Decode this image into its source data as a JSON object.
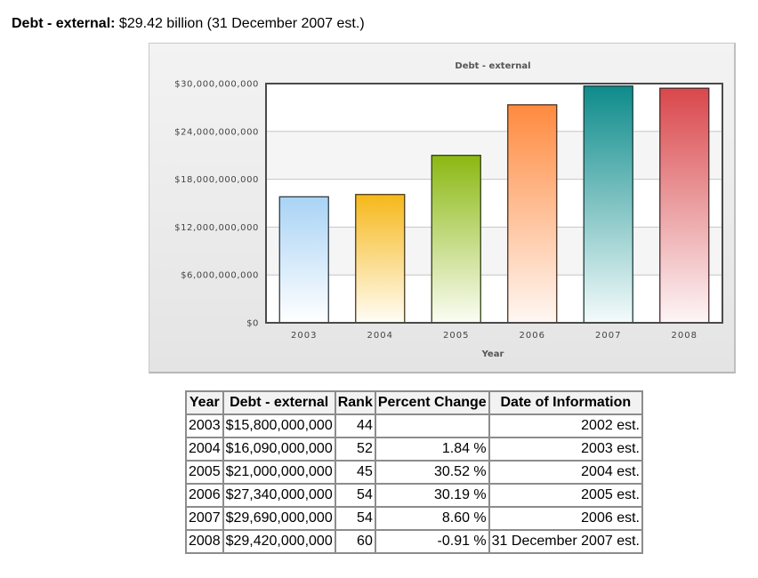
{
  "header": {
    "label": "Debt - external:",
    "value": "$29.42 billion (31 December 2007 est.)"
  },
  "colors": {
    "bar_gradients": [
      [
        "#a9d3f5",
        "#ffffff"
      ],
      [
        "#f6b81a",
        "#fffdf6"
      ],
      [
        "#8bb812",
        "#fbfdf4"
      ],
      [
        "#ff8a3e",
        "#fff8f4"
      ],
      [
        "#0e8b8b",
        "#f4fbfb"
      ],
      [
        "#d9474b",
        "#fdf6f7"
      ]
    ],
    "bar_borders": [
      "#2e3b44",
      "#4a3a1a",
      "#2e4015",
      "#4a3020",
      "#1c3b3b",
      "#4a2a2c"
    ]
  },
  "chart_data": {
    "type": "bar",
    "title": "Debt - external",
    "xlabel": "Year",
    "ylabel": "",
    "categories": [
      "2003",
      "2004",
      "2005",
      "2006",
      "2007",
      "2008"
    ],
    "values": [
      15800000000,
      16090000000,
      21000000000,
      27340000000,
      29690000000,
      29420000000
    ],
    "ylim": [
      0,
      30000000000
    ],
    "yticks": [
      0,
      6000000000,
      12000000000,
      18000000000,
      24000000000,
      30000000000
    ],
    "ytick_labels": [
      "$0",
      "$6,000,000,000",
      "$12,000,000,000",
      "$18,000,000,000",
      "$24,000,000,000",
      "$30,000,000,000"
    ],
    "grid": true,
    "legend": "none"
  },
  "table": {
    "headers": [
      "Year",
      "Debt - external",
      "Rank",
      "Percent Change",
      "Date of Information"
    ],
    "rows": [
      [
        "2003",
        "$15,800,000,000",
        "44",
        "",
        "2002 est."
      ],
      [
        "2004",
        "$16,090,000,000",
        "52",
        "1.84 %",
        "2003 est."
      ],
      [
        "2005",
        "$21,000,000,000",
        "45",
        "30.52 %",
        "2004 est."
      ],
      [
        "2006",
        "$27,340,000,000",
        "54",
        "30.19 %",
        "2005 est."
      ],
      [
        "2007",
        "$29,690,000,000",
        "54",
        "8.60 %",
        "2006 est."
      ],
      [
        "2008",
        "$29,420,000,000",
        "60",
        "-0.91 %",
        "31 December 2007 est."
      ]
    ]
  }
}
